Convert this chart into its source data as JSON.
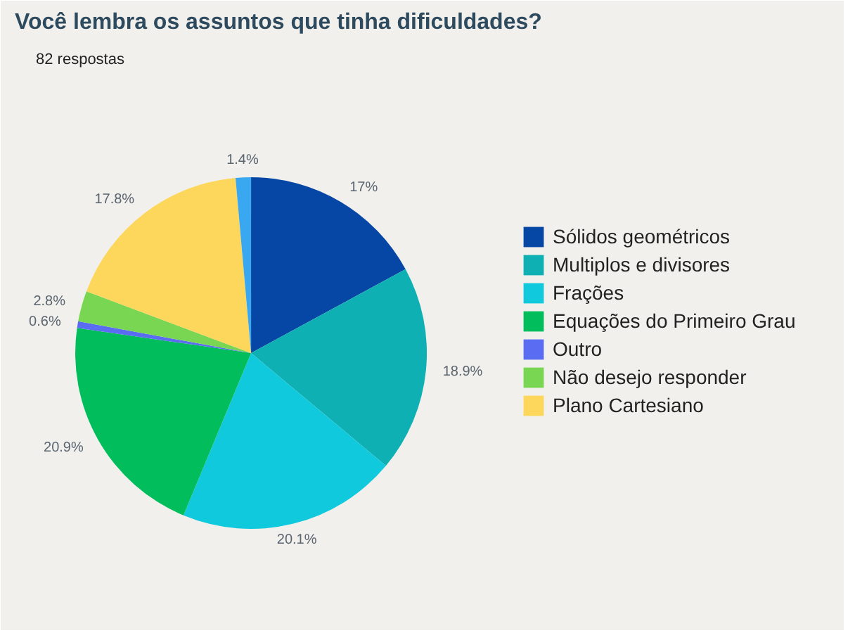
{
  "chart_data": {
    "type": "pie",
    "title": "Você lembra os assuntos que tinha dificuldades?",
    "subtitle": "82 respostas",
    "categories": [
      "Sólidos geométricos",
      "Multiplos e divisores",
      "Frações",
      "Equações do Primeiro Grau",
      "Outro",
      "Não desejo responder",
      "Plano Cartesiano",
      null
    ],
    "values": [
      17,
      18.9,
      20.1,
      20.9,
      0.6,
      2.8,
      17.8,
      1.4
    ],
    "value_labels": [
      "17%",
      "18.9%",
      "20.1%",
      "20.9%",
      "0.6%",
      "2.8%",
      "17.8%",
      "1.4%"
    ],
    "colors": [
      "#0647a6",
      "#0fb0b3",
      "#10c9dc",
      "#02bd5c",
      "#5a6cf2",
      "#79d653",
      "#fdd75c",
      "#3aa8f0"
    ],
    "legend": "right"
  }
}
